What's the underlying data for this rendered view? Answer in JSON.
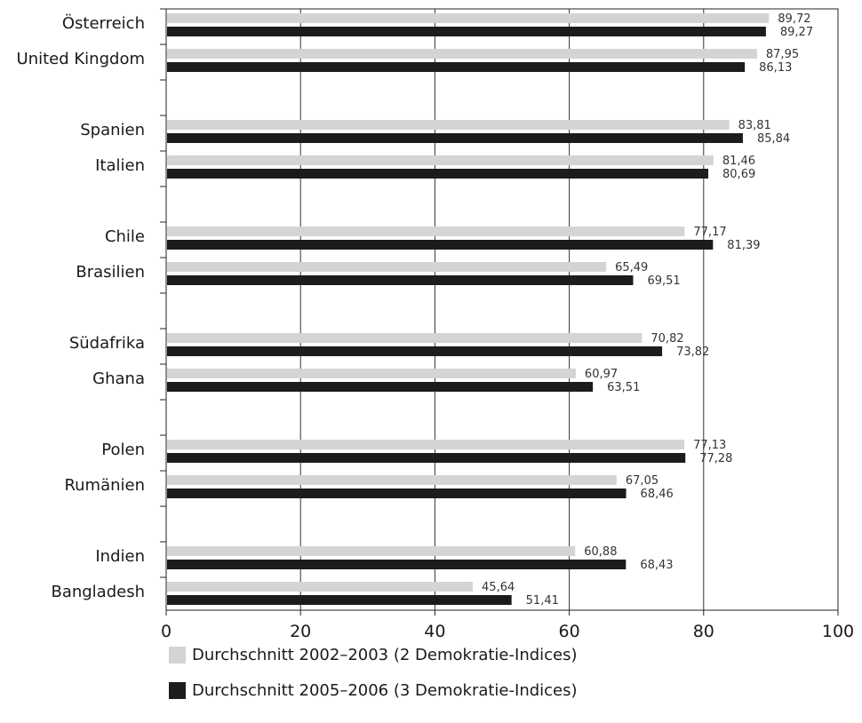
{
  "chart_data": {
    "type": "bar",
    "orientation": "horizontal",
    "categories": [
      "Österreich",
      "United Kingdom",
      "Spanien",
      "Italien",
      "Chile",
      "Brasilien",
      "Südafrika",
      "Ghana",
      "Polen",
      "Rumänien",
      "Indien",
      "Bangladesh"
    ],
    "series": [
      {
        "name": "Durchschnitt 2002–2003 (2 Demokratie-Indices)",
        "color": "#d4d4d4",
        "values": [
          89.72,
          87.95,
          83.81,
          81.46,
          77.17,
          65.49,
          70.82,
          60.97,
          77.13,
          67.05,
          60.88,
          45.64
        ],
        "labels": [
          "89,72",
          "87,95",
          "83,81",
          "81,46",
          "77,17",
          "65,49",
          "70,82",
          "60,97",
          "77,13",
          "67,05",
          "60,88",
          "45,64"
        ]
      },
      {
        "name": "Durchschnitt 2005–2006 (3 Demokratie-Indices)",
        "color": "#1c1c1c",
        "values": [
          89.27,
          86.13,
          85.84,
          80.69,
          81.39,
          69.51,
          73.82,
          63.51,
          77.28,
          68.46,
          68.43,
          51.41
        ],
        "labels": [
          "89,27",
          "86,13",
          "85,84",
          "80,69",
          "81,39",
          "69,51",
          "73,82",
          "63,51",
          "77,28",
          "68,46",
          "68,43",
          "51,41"
        ]
      }
    ],
    "xlim": [
      0,
      100
    ],
    "xticks": [
      0,
      20,
      40,
      60,
      80,
      100
    ],
    "xtick_labels": [
      "0",
      "20",
      "40",
      "60",
      "80",
      "100"
    ],
    "grid": "vertical",
    "legend_position": "bottom-left",
    "title": "",
    "xlabel": "",
    "ylabel": ""
  }
}
